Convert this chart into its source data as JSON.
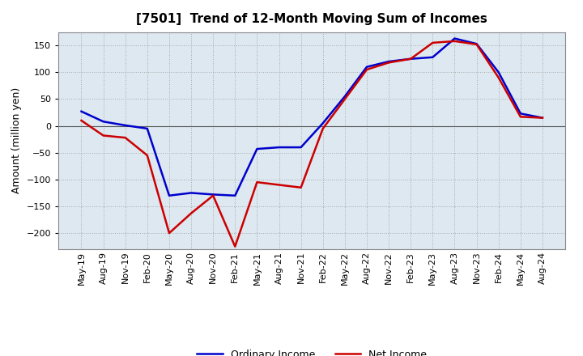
{
  "title": "[7501]  Trend of 12-Month Moving Sum of Incomes",
  "ylabel": "Amount (million yen)",
  "x_labels": [
    "May-19",
    "Aug-19",
    "Nov-19",
    "Feb-20",
    "May-20",
    "Aug-20",
    "Nov-20",
    "Feb-21",
    "May-21",
    "Aug-21",
    "Nov-21",
    "Feb-22",
    "May-22",
    "Aug-22",
    "Nov-22",
    "Feb-23",
    "May-23",
    "Aug-23",
    "Nov-23",
    "Feb-24",
    "May-24",
    "Aug-24"
  ],
  "ordinary_income": [
    27,
    8,
    1,
    -5,
    -130,
    -125,
    -128,
    -130,
    -43,
    -40,
    -40,
    5,
    55,
    110,
    120,
    125,
    128,
    163,
    153,
    100,
    23,
    15
  ],
  "net_income": [
    10,
    -18,
    -22,
    -55,
    -200,
    -163,
    -130,
    -225,
    -105,
    -110,
    -115,
    -5,
    50,
    105,
    118,
    125,
    155,
    158,
    152,
    90,
    17,
    15
  ],
  "ordinary_income_color": "#0000cc",
  "net_income_color": "#cc0000",
  "ylim": [
    -230,
    175
  ],
  "yticks": [
    -200,
    -150,
    -100,
    -50,
    0,
    50,
    100,
    150
  ],
  "background_color": "#ffffff",
  "plot_bg_color": "#dde8f0",
  "grid_color": "#aaaaaa",
  "line_width": 1.8,
  "title_fontsize": 11,
  "ylabel_fontsize": 9,
  "tick_fontsize": 8
}
